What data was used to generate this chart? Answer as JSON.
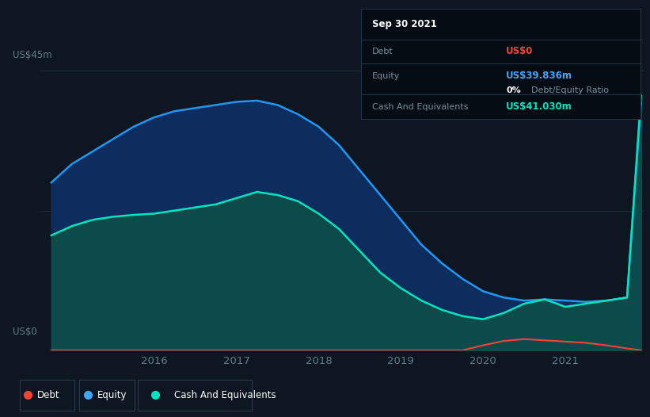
{
  "bg_color": "#0e1621",
  "plot_bg_color": "#0e1621",
  "ylabel_top": "US$45m",
  "ylabel_bottom": "US$0",
  "ylim": [
    0,
    47
  ],
  "x_ticks": [
    2016,
    2017,
    2018,
    2019,
    2020,
    2021
  ],
  "equity_color": "#2196f3",
  "equity_fill": "#0d2d5e",
  "cash_color": "#00e5c0",
  "cash_fill": "#0d4a4a",
  "debt_color": "#f44336",
  "grid_color": "#1e2d3d",
  "tick_color": "#607d8b",
  "ann_bg": "#060c14",
  "ann_border": "#253545",
  "legend_items": [
    {
      "label": "Debt",
      "color": "#f44336"
    },
    {
      "label": "Equity",
      "color": "#42a5f5"
    },
    {
      "label": "Cash And Equivalents",
      "color": "#00e5c0"
    }
  ],
  "x_years": [
    2014.75,
    2015.0,
    2015.25,
    2015.5,
    2015.75,
    2016.0,
    2016.25,
    2016.5,
    2016.75,
    2017.0,
    2017.25,
    2017.5,
    2017.75,
    2018.0,
    2018.25,
    2018.5,
    2018.75,
    2019.0,
    2019.25,
    2019.5,
    2019.75,
    2020.0,
    2020.25,
    2020.5,
    2020.75,
    2021.0,
    2021.25,
    2021.5,
    2021.75,
    2021.92
  ],
  "equity": [
    27,
    30,
    32,
    34,
    36,
    37.5,
    38.5,
    39,
    39.5,
    40,
    40.2,
    39.5,
    38,
    36,
    33,
    29,
    25,
    21,
    17,
    14,
    11.5,
    9.5,
    8.5,
    8.0,
    8.2,
    8.0,
    7.8,
    8.0,
    8.5,
    39.836
  ],
  "cash": [
    18.5,
    20,
    21,
    21.5,
    21.8,
    22,
    22.5,
    23,
    23.5,
    24.5,
    25.5,
    25,
    24,
    22,
    19.5,
    16,
    12.5,
    10,
    8,
    6.5,
    5.5,
    5.0,
    6.0,
    7.5,
    8.2,
    7.0,
    7.5,
    8.0,
    8.5,
    41.03
  ],
  "debt": [
    0,
    0,
    0,
    0,
    0,
    0,
    0,
    0,
    0,
    0,
    0,
    0,
    0,
    0,
    0,
    0,
    0,
    0,
    0,
    0,
    0,
    0.8,
    1.5,
    1.8,
    1.6,
    1.4,
    1.2,
    0.8,
    0.3,
    0.0
  ],
  "ann_title": "Sep 30 2021",
  "ann_debt_label": "Debt",
  "ann_debt_val": "US$0",
  "ann_equity_label": "Equity",
  "ann_equity_val": "US$39.836m",
  "ann_ratio": "0%",
  "ann_ratio_label": "Debt/Equity Ratio",
  "ann_cash_label": "Cash And Equivalents",
  "ann_cash_val": "US$41.030m"
}
